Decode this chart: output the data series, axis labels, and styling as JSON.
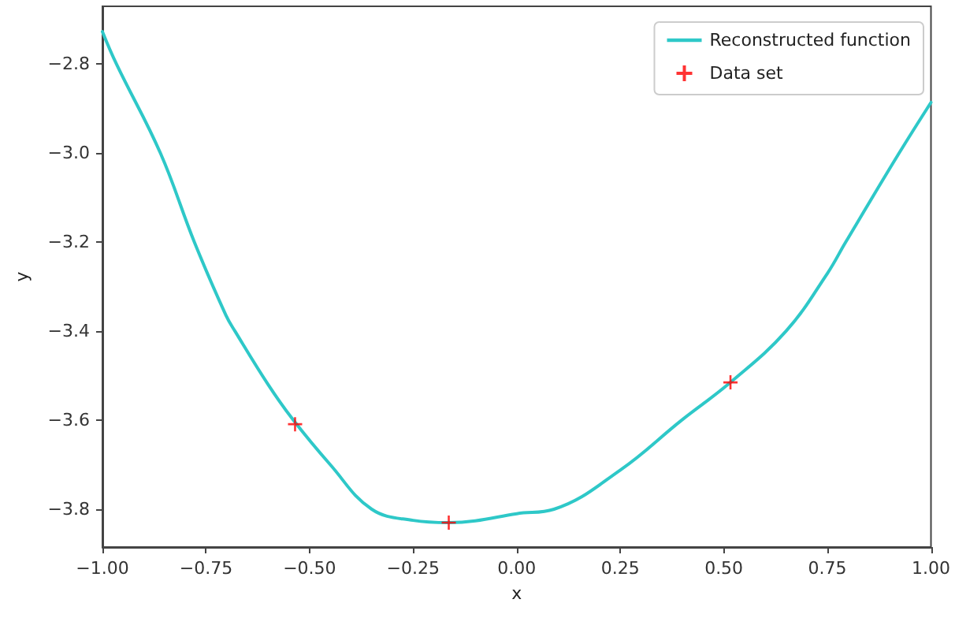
{
  "chart_data": {
    "type": "line",
    "xlabel": "x",
    "ylabel": "y",
    "legend": "top right",
    "grid": false,
    "xlim": [
      -1,
      1
    ],
    "ylim": [
      -3.885,
      -2.67
    ],
    "xticks": [
      {
        "value": -1,
        "label": "−1.00"
      },
      {
        "value": -0.75,
        "label": "−0.75"
      },
      {
        "value": -0.5,
        "label": "−0.50"
      },
      {
        "value": -0.25,
        "label": "−0.25"
      },
      {
        "value": 0,
        "label": "0.00"
      },
      {
        "value": 0.25,
        "label": "0.25"
      },
      {
        "value": 0.5,
        "label": "0.50"
      },
      {
        "value": 0.75,
        "label": "0.75"
      },
      {
        "value": 1,
        "label": "1.00"
      }
    ],
    "yticks": [
      {
        "value": -3.8,
        "label": "−3.8"
      },
      {
        "value": -3.6,
        "label": "−3.6"
      },
      {
        "value": -3.4,
        "label": "−3.4"
      },
      {
        "value": -3.2,
        "label": "−3.2"
      },
      {
        "value": -3.0,
        "label": "−3.0"
      },
      {
        "value": -2.8,
        "label": "−2.8"
      }
    ],
    "series": [
      {
        "name": "Reconstructed function",
        "color": "#2ec8c8",
        "marker": "none",
        "line_style": "solid",
        "x": [
          -1,
          -0.966,
          -0.86,
          -0.778,
          -0.702,
          -0.68,
          -0.6,
          -0.539,
          -0.45,
          -0.35,
          -0.25,
          -0.164,
          -0.1,
          0,
          0.09,
          0.25,
          0.398,
          0.516,
          0.65,
          0.75,
          0.794,
          0.923,
          1
        ],
        "values": [
          -2.727,
          -2.8,
          -3.0,
          -3.2,
          -3.364,
          -3.4,
          -3.52,
          -3.6,
          -3.7,
          -3.8,
          -3.825,
          -3.83,
          -3.826,
          -3.81,
          -3.8,
          -3.712,
          -3.6,
          -3.515,
          -3.4,
          -3.27,
          -3.2,
          -3.0,
          -2.886
        ]
      },
      {
        "name": "Data set",
        "type": "scatter",
        "color": "#ff0000",
        "marker": "cross",
        "x": [
          -0.535,
          -0.164,
          0.516
        ],
        "values": [
          -3.609,
          -3.83,
          -3.515
        ]
      }
    ]
  }
}
